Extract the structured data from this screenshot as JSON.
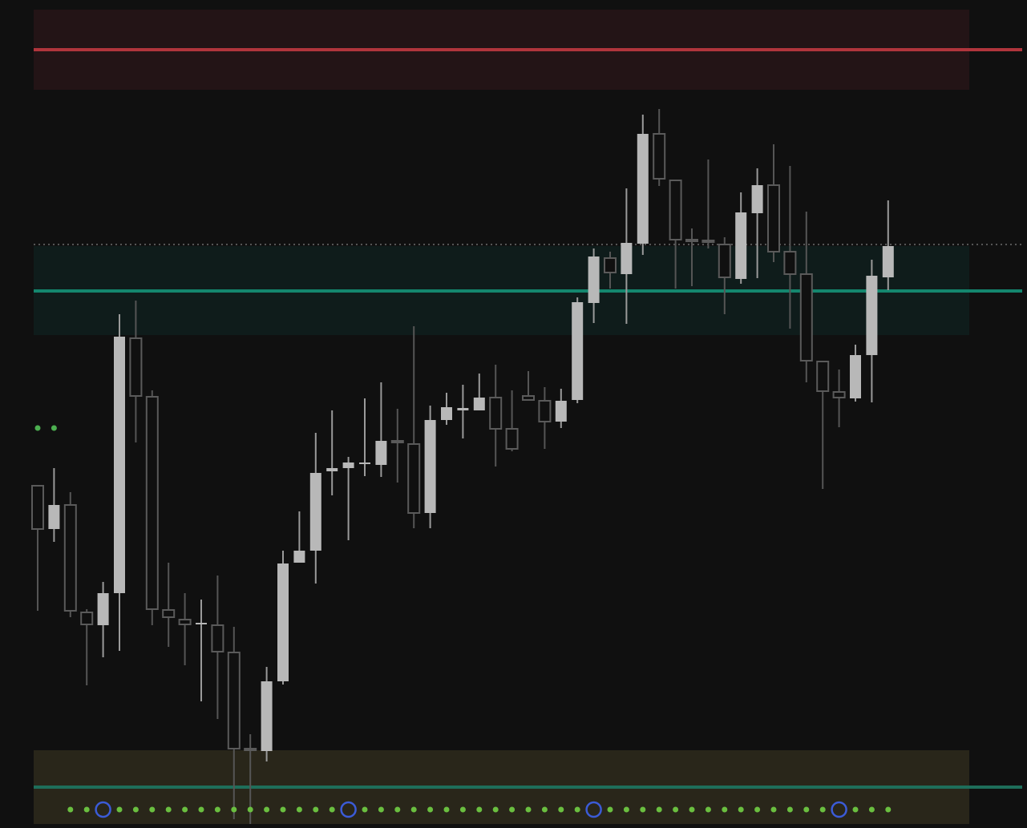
{
  "chart_data": {
    "type": "candlestick",
    "ylim": [
      0,
      1033
    ],
    "open": [
      427,
      373,
      403,
      269,
      253,
      293,
      611,
      538,
      272,
      260,
      254,
      253,
      219,
      99,
      96,
      183,
      331,
      346,
      445,
      449,
      454,
      453,
      483,
      479,
      393,
      509,
      521,
      521,
      537,
      498,
      539,
      533,
      507,
      534,
      655,
      711,
      691,
      729,
      866,
      808,
      734,
      733,
      728,
      685,
      767,
      802,
      719,
      691,
      582,
      544,
      536,
      590,
      687
    ],
    "high": [
      427,
      449,
      419,
      273,
      307,
      641,
      658,
      546,
      331,
      293,
      285,
      315,
      251,
      117,
      201,
      346,
      395,
      493,
      521,
      463,
      536,
      556,
      523,
      626,
      527,
      543,
      553,
      567,
      578,
      546,
      570,
      550,
      548,
      662,
      723,
      719,
      798,
      890,
      897,
      808,
      748,
      834,
      737,
      793,
      823,
      853,
      826,
      769,
      582,
      572,
      603,
      709,
      783
    ],
    "low": [
      271,
      357,
      263,
      178,
      213,
      221,
      481,
      253,
      226,
      203,
      158,
      136,
      11,
      5,
      83,
      179,
      331,
      305,
      415,
      359,
      439,
      438,
      431,
      374,
      374,
      503,
      486,
      521,
      451,
      470,
      534,
      473,
      499,
      530,
      630,
      673,
      629,
      715,
      801,
      673,
      676,
      723,
      641,
      679,
      686,
      706,
      623,
      556,
      423,
      500,
      532,
      531,
      671
    ],
    "close": [
      373,
      403,
      271,
      254,
      293,
      613,
      539,
      273,
      263,
      254,
      256,
      220,
      99,
      98,
      183,
      330,
      346,
      443,
      449,
      456,
      456,
      483,
      481,
      393,
      509,
      525,
      524,
      537,
      498,
      473,
      534,
      507,
      533,
      656,
      713,
      693,
      730,
      866,
      810,
      734,
      733,
      732,
      687,
      768,
      802,
      719,
      691,
      583,
      545,
      537,
      590,
      689,
      726
    ],
    "up_color": "#b8b8b8",
    "down_color": "#5a5a5a",
    "zones": [
      {
        "from": 921,
        "to": 1021,
        "level": 971,
        "fill": "#231416",
        "line": "#b0353c"
      },
      {
        "from": 615,
        "to": 726,
        "level": 670,
        "fill": "#0f1c1b",
        "line": "#14866e"
      },
      {
        "from": 5,
        "to": 97,
        "level": 51,
        "fill": "#29261a",
        "line": "#1e6e5a"
      }
    ],
    "dotted_level": 728
  }
}
